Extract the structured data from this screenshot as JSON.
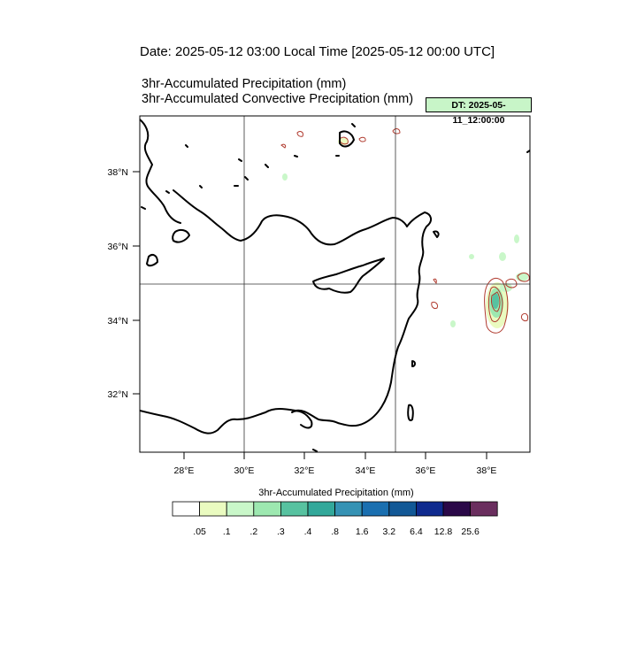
{
  "header": {
    "date_line": "Date: 2025-05-12  03:00 Local Time [2025-05-12  00:00 UTC]",
    "title_line_1": "3hr-Accumulated Precipitation   (mm)",
    "title_line_2": "3hr-Accumulated Convective Precipitation   (mm)",
    "dt_badge": "DT: 2025-05-11_12:00:00"
  },
  "map": {
    "lat_labels": [
      "38°N",
      "36°N",
      "34°N",
      "32°N"
    ],
    "lon_labels": [
      "28°E",
      "30°E",
      "32°E",
      "34°E",
      "36°E",
      "38°E"
    ],
    "land_outline_color": "#000000",
    "grid_color": "#333333"
  },
  "colorbar": {
    "title": "3hr-Accumulated Precipitation   (mm)",
    "colors": [
      "#ffffff",
      "#eafbc0",
      "#c9f7c9",
      "#9de8b0",
      "#57c2a0",
      "#32a89a",
      "#3592b4",
      "#1a6fb0",
      "#125896",
      "#0f2a8e",
      "#2a0848",
      "#6a2e5e"
    ],
    "labels": [
      ".05",
      ".1",
      ".2",
      ".3",
      ".4",
      ".8",
      "1.6",
      "3.2",
      "6.4",
      "12.8",
      "25.6"
    ]
  },
  "contour_color": "#b03a2e"
}
